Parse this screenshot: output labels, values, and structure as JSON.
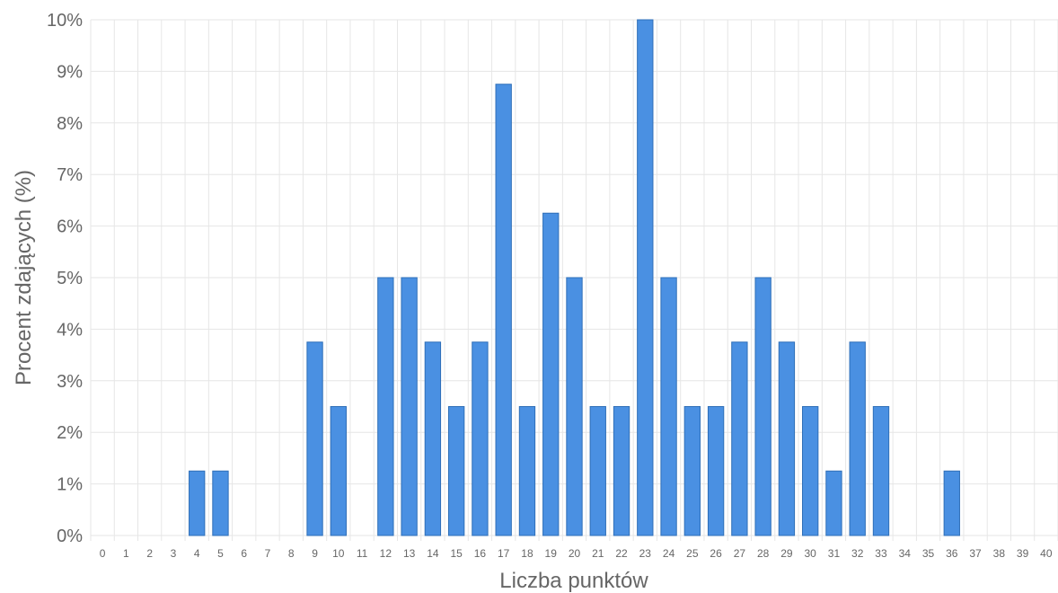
{
  "chart_data": {
    "type": "bar",
    "title": "",
    "xlabel": "Liczba punktów",
    "ylabel": "Procent zdających (%)",
    "ylim": [
      0,
      10
    ],
    "y_ticks": [
      "0%",
      "1%",
      "2%",
      "3%",
      "4%",
      "5%",
      "6%",
      "7%",
      "8%",
      "9%",
      "10%"
    ],
    "categories": [
      "0",
      "1",
      "2",
      "3",
      "4",
      "5",
      "6",
      "7",
      "8",
      "9",
      "10",
      "11",
      "12",
      "13",
      "14",
      "15",
      "16",
      "17",
      "18",
      "19",
      "20",
      "21",
      "22",
      "23",
      "24",
      "25",
      "26",
      "27",
      "28",
      "29",
      "30",
      "31",
      "32",
      "33",
      "34",
      "35",
      "36",
      "37",
      "38",
      "39",
      "40"
    ],
    "values": [
      0,
      0,
      0,
      0,
      1.25,
      1.25,
      0,
      0,
      0,
      3.75,
      2.5,
      0,
      5,
      5,
      3.75,
      2.5,
      3.75,
      8.75,
      2.5,
      6.25,
      5,
      2.5,
      2.5,
      10,
      5,
      2.5,
      2.5,
      3.75,
      5,
      3.75,
      2.5,
      1.25,
      3.75,
      2.5,
      0,
      0,
      1.25,
      0,
      0,
      0,
      0
    ],
    "grid": true,
    "legend": "none",
    "colors": {
      "bar_fill": "#4a90e2",
      "bar_stroke": "#2f6fb8"
    }
  }
}
